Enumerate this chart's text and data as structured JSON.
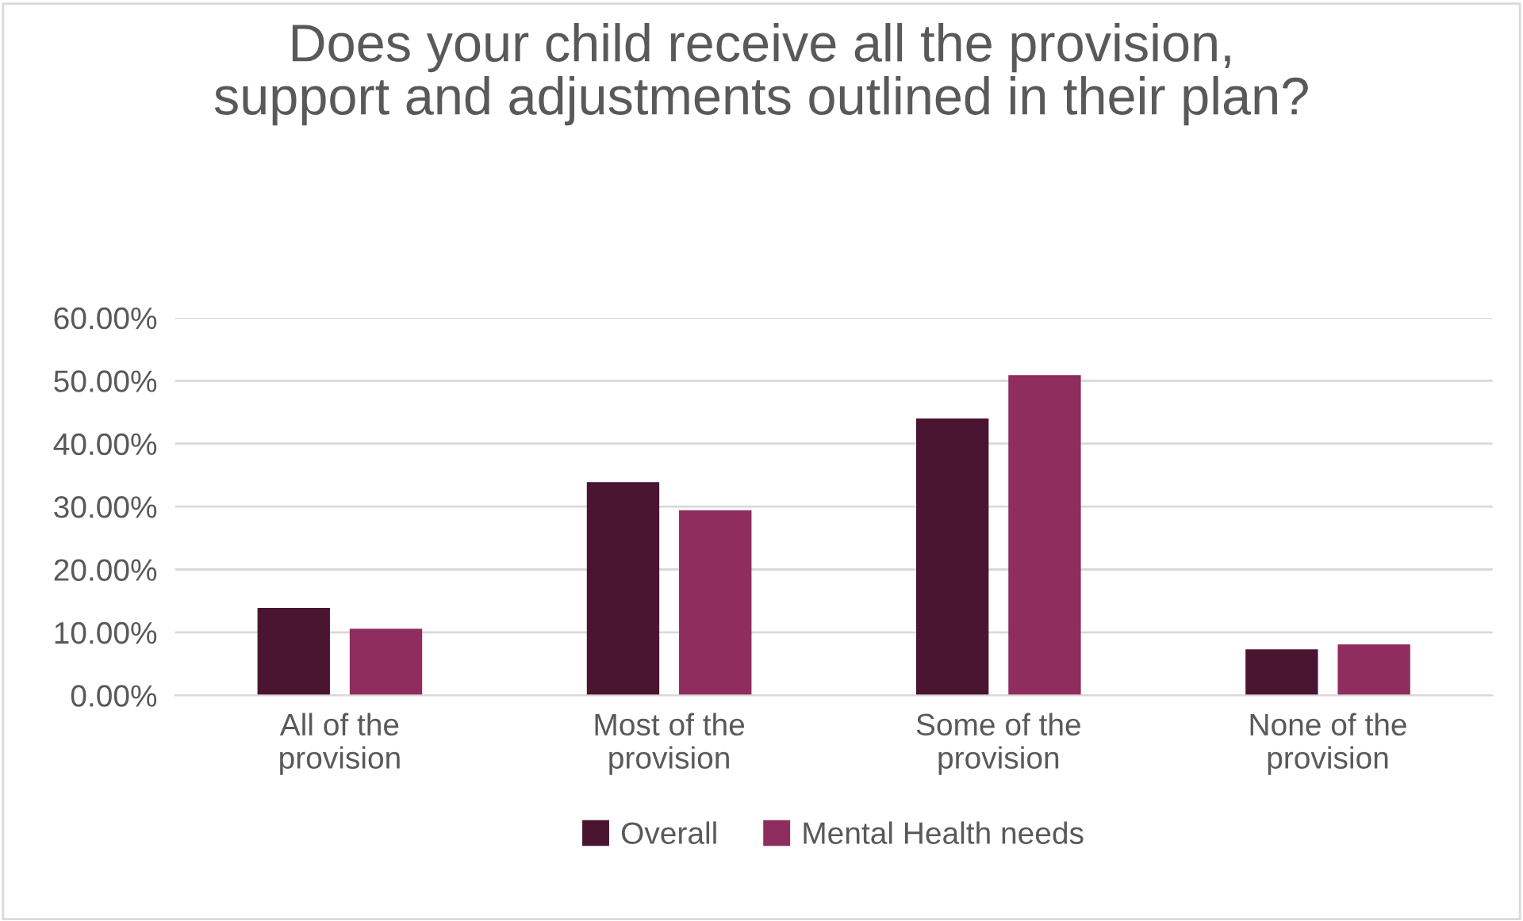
{
  "chart_data": {
    "type": "bar",
    "title": "Does your child receive all the provision, support and adjustments outlined in their plan?",
    "categories": [
      "All of the provision",
      "Most of the provision",
      "Some of the provision",
      "None of the provision"
    ],
    "series": [
      {
        "name": "Overall",
        "color": "#4a1530",
        "values": [
          13.9,
          33.9,
          44.0,
          7.3
        ]
      },
      {
        "name": "Mental Health needs",
        "color": "#8e2d5e",
        "values": [
          10.6,
          29.4,
          50.9,
          8.1
        ]
      }
    ],
    "ylim": [
      0,
      60
    ],
    "yticks": [
      {
        "value": 0,
        "label": "0.00%"
      },
      {
        "value": 10,
        "label": "10.00%"
      },
      {
        "value": 20,
        "label": "20.00%"
      },
      {
        "value": 30,
        "label": "30.00%"
      },
      {
        "value": 40,
        "label": "40.00%"
      },
      {
        "value": 50,
        "label": "50.00%"
      },
      {
        "value": 60,
        "label": "60.00%"
      }
    ],
    "grid": "y",
    "legend": "bottom"
  }
}
